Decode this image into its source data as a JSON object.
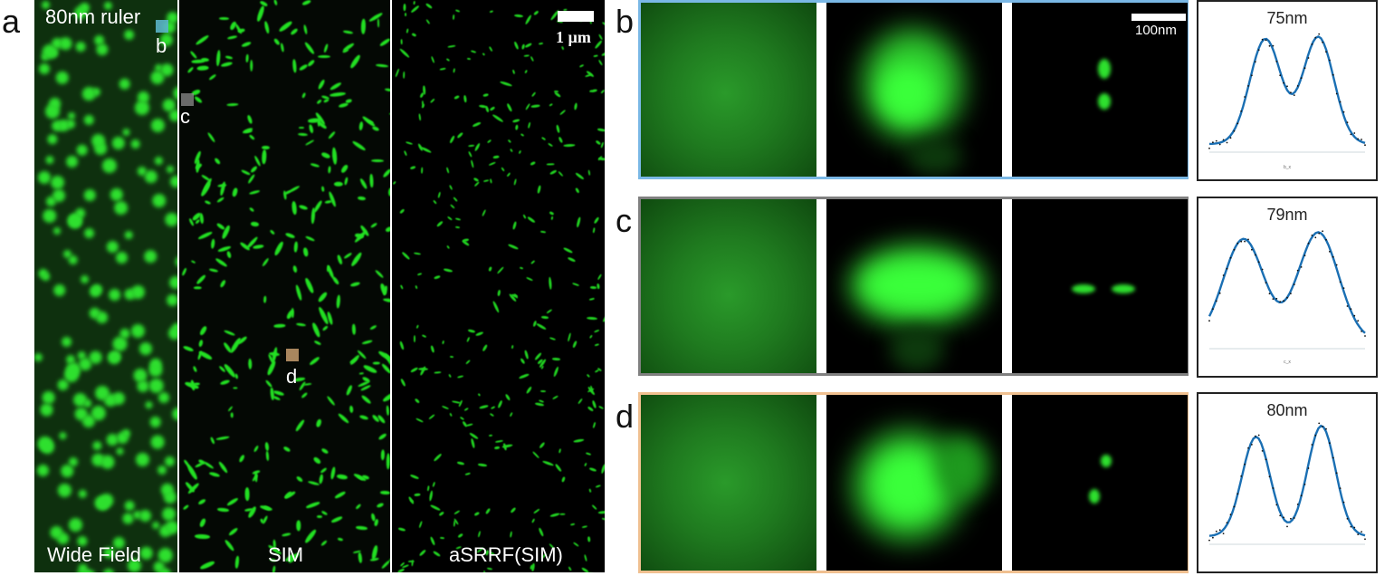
{
  "panel_labels": {
    "a": "a",
    "b": "b",
    "c": "c",
    "d": "d"
  },
  "panel_a": {
    "ruler_label": "80nm ruler",
    "scalebar_label": "1 µm",
    "roi_labels": {
      "b": "b",
      "c": "c",
      "d": "d"
    },
    "roi_colors": {
      "b": "#5ab4c6",
      "c": "#8c8c8c",
      "d": "#e0b07c"
    },
    "method_labels": [
      "Wide Field",
      "SIM",
      "aSRRF(SIM)"
    ]
  },
  "zoom_rows": {
    "border_colors": {
      "b": "#7ab8e6",
      "c": "#808080",
      "d": "#f0c090"
    },
    "scalebar_label": "100nm"
  },
  "profiles": [
    {
      "id": "b",
      "distance_label": "75nm",
      "axis_caption": "b_x"
    },
    {
      "id": "c",
      "distance_label": "79nm",
      "axis_caption": "c_x"
    },
    {
      "id": "d",
      "distance_label": "80nm",
      "axis_caption": ""
    }
  ],
  "colors": {
    "fluorescence": "#22e022",
    "profile_fit": "#1a6fb3",
    "profile_data": "#111111"
  }
}
